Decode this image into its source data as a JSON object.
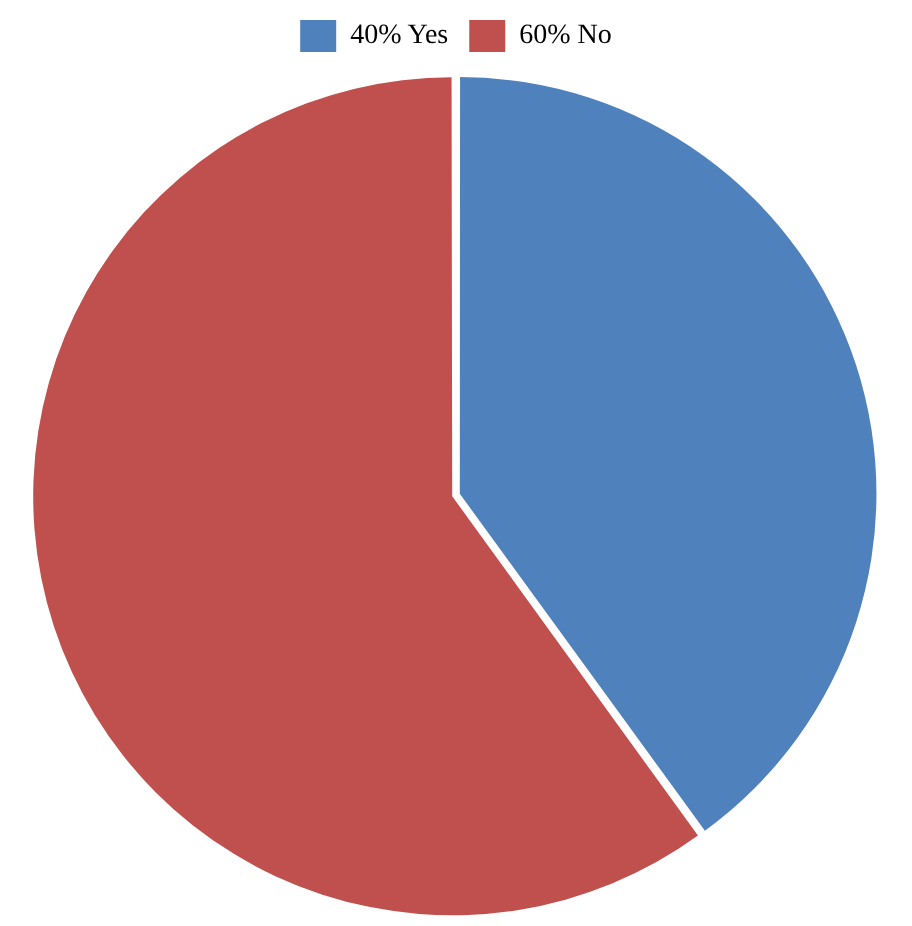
{
  "chart_data": {
    "type": "pie",
    "categories": [
      "40% Yes",
      "60% No"
    ],
    "values": [
      40,
      60
    ],
    "colors": [
      "#4f81bd",
      "#c0504d"
    ],
    "legend": "top"
  }
}
